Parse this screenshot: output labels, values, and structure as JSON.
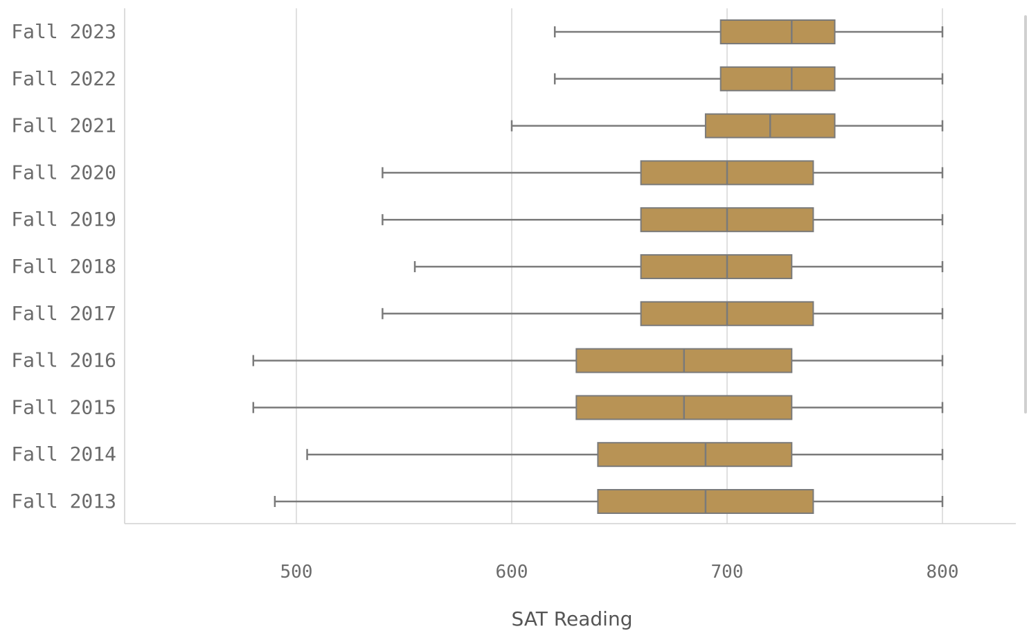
{
  "chart_data": {
    "type": "boxplot",
    "orientation": "horizontal",
    "title": "",
    "xlabel": "SAT Reading",
    "ylabel": "",
    "xlim": [
      420,
      835
    ],
    "x_ticks": [
      500,
      600,
      700,
      800
    ],
    "grid": "vertical",
    "colors": {
      "box_fill": "#b89355",
      "box_stroke": "#7a7a7a",
      "whisker": "#7a7a7a",
      "grid": "#d6d6d6"
    },
    "categories": [
      "Fall 2023",
      "Fall 2022",
      "Fall 2021",
      "Fall 2020",
      "Fall 2019",
      "Fall 2018",
      "Fall 2017",
      "Fall 2016",
      "Fall 2015",
      "Fall 2014",
      "Fall 2013"
    ],
    "series": [
      {
        "category": "Fall 2023",
        "min": 620,
        "q1": 697,
        "median": 730,
        "q3": 750,
        "max": 800
      },
      {
        "category": "Fall 2022",
        "min": 620,
        "q1": 697,
        "median": 730,
        "q3": 750,
        "max": 800
      },
      {
        "category": "Fall 2021",
        "min": 600,
        "q1": 690,
        "median": 720,
        "q3": 750,
        "max": 800
      },
      {
        "category": "Fall 2020",
        "min": 540,
        "q1": 660,
        "median": 700,
        "q3": 740,
        "max": 800
      },
      {
        "category": "Fall 2019",
        "min": 540,
        "q1": 660,
        "median": 700,
        "q3": 740,
        "max": 800
      },
      {
        "category": "Fall 2018",
        "min": 555,
        "q1": 660,
        "median": 700,
        "q3": 730,
        "max": 800
      },
      {
        "category": "Fall 2017",
        "min": 540,
        "q1": 660,
        "median": 700,
        "q3": 740,
        "max": 800
      },
      {
        "category": "Fall 2016",
        "min": 480,
        "q1": 630,
        "median": 680,
        "q3": 730,
        "max": 800
      },
      {
        "category": "Fall 2015",
        "min": 480,
        "q1": 630,
        "median": 680,
        "q3": 730,
        "max": 800
      },
      {
        "category": "Fall 2014",
        "min": 505,
        "q1": 640,
        "median": 690,
        "q3": 730,
        "max": 800
      },
      {
        "category": "Fall 2013",
        "min": 490,
        "q1": 640,
        "median": 690,
        "q3": 740,
        "max": 800
      }
    ]
  }
}
